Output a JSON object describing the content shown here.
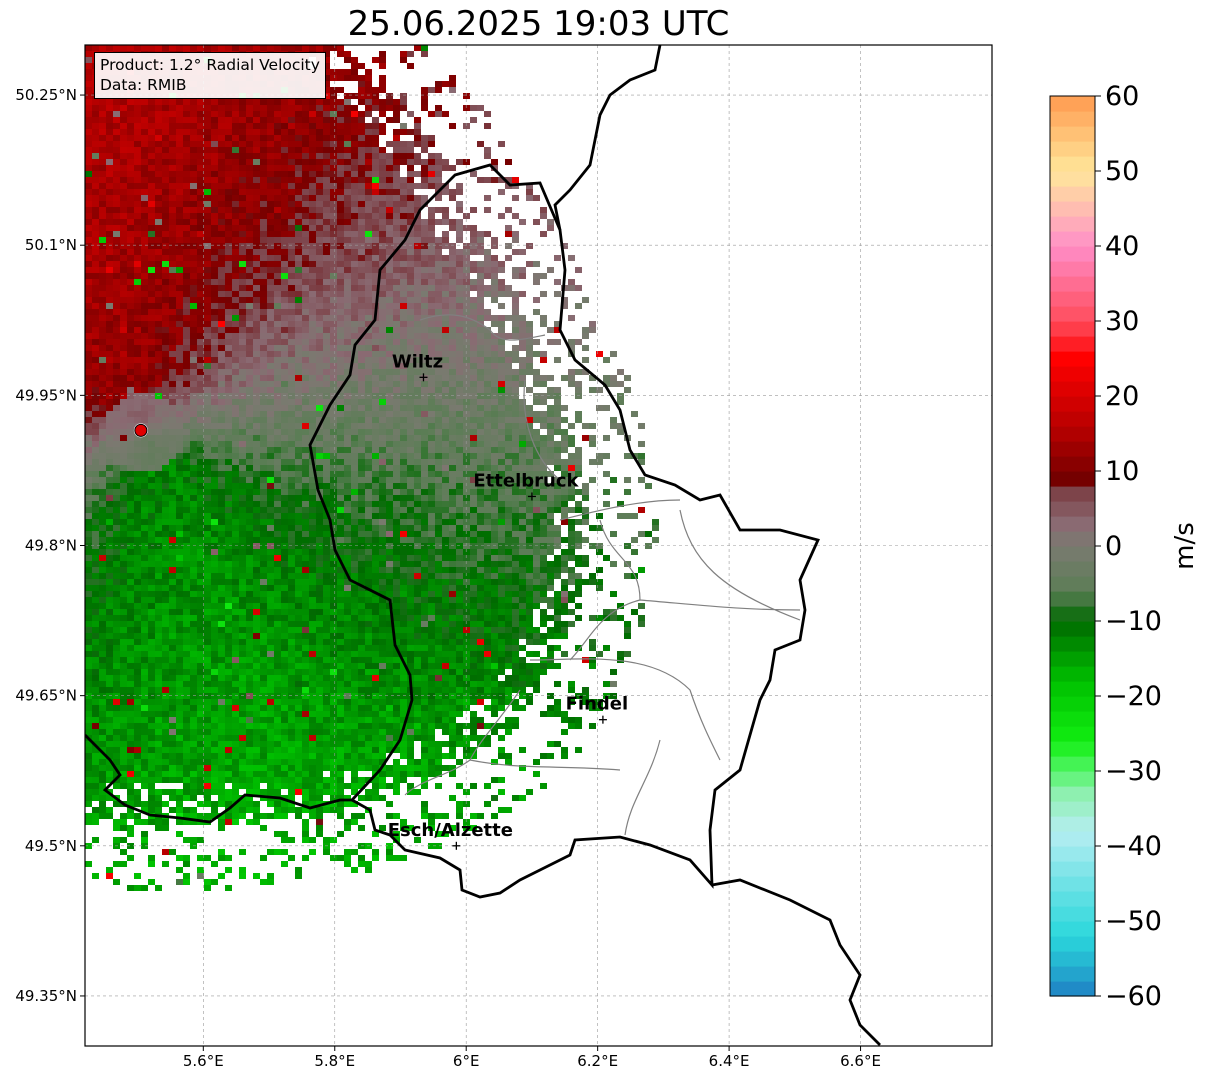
{
  "title": "25.06.2025 19:03 UTC",
  "info": {
    "product_line": "Product: 1.2° Radial Velocity",
    "data_line": "Data: RMIB"
  },
  "map": {
    "lon_range": [
      5.42,
      6.8
    ],
    "lat_range": [
      49.3,
      50.3
    ],
    "lon_ticks": [
      {
        "value": 5.6,
        "label": "5.6°E"
      },
      {
        "value": 5.8,
        "label": "5.8°E"
      },
      {
        "value": 6.0,
        "label": "6°E"
      },
      {
        "value": 6.2,
        "label": "6.2°E"
      },
      {
        "value": 6.4,
        "label": "6.4°E"
      },
      {
        "value": 6.6,
        "label": "6.6°E"
      }
    ],
    "lat_ticks": [
      {
        "value": 49.35,
        "label": "49.35°N"
      },
      {
        "value": 49.5,
        "label": "49.5°N"
      },
      {
        "value": 49.65,
        "label": "49.65°N"
      },
      {
        "value": 49.8,
        "label": "49.8°N"
      },
      {
        "value": 49.95,
        "label": "49.95°N"
      },
      {
        "value": 50.1,
        "label": "50.1°N"
      },
      {
        "value": 50.25,
        "label": "50.25°N"
      }
    ],
    "grid": true,
    "radar_site": {
      "lon": 5.505,
      "lat": 49.915,
      "color": "#e00000"
    },
    "cities": [
      {
        "name": "Wiltz",
        "lon": 5.935,
        "lat": 49.968
      },
      {
        "name": "Ettelbruck",
        "lon": 6.1,
        "lat": 49.849
      },
      {
        "name": "Findel",
        "lon": 6.208,
        "lat": 49.626
      },
      {
        "name": "Esch/Alzette",
        "lon": 5.985,
        "lat": 49.5
      }
    ]
  },
  "colorbar": {
    "label": "m/s",
    "min": -60,
    "max": 60,
    "ticks": [
      {
        "value": 60,
        "label": "60"
      },
      {
        "value": 50,
        "label": "50"
      },
      {
        "value": 40,
        "label": "40"
      },
      {
        "value": 30,
        "label": "30"
      },
      {
        "value": 20,
        "label": "20"
      },
      {
        "value": 10,
        "label": "10"
      },
      {
        "value": 0,
        "label": "0"
      },
      {
        "value": -10,
        "label": "−10"
      },
      {
        "value": -20,
        "label": "−20"
      },
      {
        "value": -30,
        "label": "−30"
      },
      {
        "value": -40,
        "label": "−40"
      },
      {
        "value": -50,
        "label": "−50"
      },
      {
        "value": -60,
        "label": "−60"
      }
    ],
    "stops": [
      {
        "v": -60,
        "color": "#1f7fc4"
      },
      {
        "v": -56,
        "color": "#24b0d0"
      },
      {
        "v": -52,
        "color": "#2ad7dc"
      },
      {
        "v": -45,
        "color": "#6fe2e6"
      },
      {
        "v": -38,
        "color": "#b6eef2"
      },
      {
        "v": -33,
        "color": "#8ef0b0"
      },
      {
        "v": -30,
        "color": "#55f56a"
      },
      {
        "v": -26,
        "color": "#11ee11"
      },
      {
        "v": -18,
        "color": "#00c000"
      },
      {
        "v": -10,
        "color": "#006a00"
      },
      {
        "v": -6,
        "color": "#5c7d56"
      },
      {
        "v": 0,
        "color": "#7a7a70"
      },
      {
        "v": 3,
        "color": "#8a6a72"
      },
      {
        "v": 8,
        "color": "#7a3a40"
      },
      {
        "v": 9,
        "color": "#750000"
      },
      {
        "v": 15,
        "color": "#b00000"
      },
      {
        "v": 25,
        "color": "#ff0000"
      },
      {
        "v": 30,
        "color": "#ff4c5c"
      },
      {
        "v": 40,
        "color": "#ff8ec8"
      },
      {
        "v": 44,
        "color": "#ffb5b5"
      },
      {
        "v": 50,
        "color": "#ffe79a"
      },
      {
        "v": 60,
        "color": "#ff9a50"
      }
    ]
  }
}
